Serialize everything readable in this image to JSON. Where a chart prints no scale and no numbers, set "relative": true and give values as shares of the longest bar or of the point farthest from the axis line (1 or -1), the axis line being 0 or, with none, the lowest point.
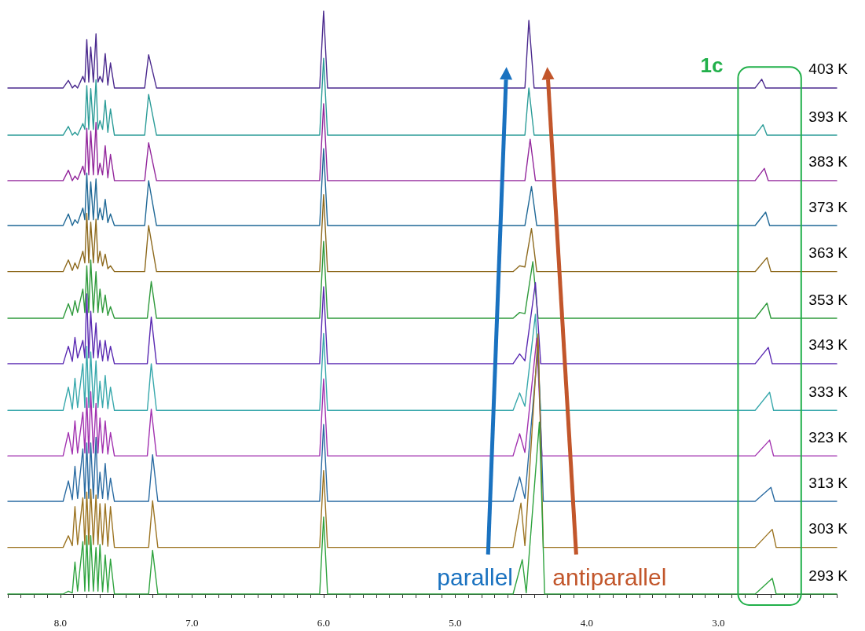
{
  "chart_data": {
    "type": "line",
    "relative": true,
    "xlim": [
      8.4,
      2.1
    ],
    "xticks": [
      {
        "value": 8.4,
        "label": null
      },
      {
        "value": 8.3,
        "label": null
      },
      {
        "value": 8.2,
        "label": null
      },
      {
        "value": 8.1,
        "label": null
      },
      {
        "value": 8,
        "label": "8.0"
      },
      {
        "value": 7.9,
        "label": null
      },
      {
        "value": 7.8,
        "label": null
      },
      {
        "value": 7.7,
        "label": null
      },
      {
        "value": 7.6,
        "label": null
      },
      {
        "value": 7.5,
        "label": null
      },
      {
        "value": 7.4,
        "label": null
      },
      {
        "value": 7.3,
        "label": null
      },
      {
        "value": 7.2,
        "label": null
      },
      {
        "value": 7.1,
        "label": null
      },
      {
        "value": 7,
        "label": "7.0"
      },
      {
        "value": 6.9,
        "label": null
      },
      {
        "value": 6.8,
        "label": null
      },
      {
        "value": 6.7,
        "label": null
      },
      {
        "value": 6.6,
        "label": null
      },
      {
        "value": 6.5,
        "label": null
      },
      {
        "value": 6.4,
        "label": null
      },
      {
        "value": 6.3,
        "label": null
      },
      {
        "value": 6.2,
        "label": null
      },
      {
        "value": 6.1,
        "label": null
      },
      {
        "value": 6,
        "label": "6.0"
      },
      {
        "value": 5.9,
        "label": null
      },
      {
        "value": 5.8,
        "label": null
      },
      {
        "value": 5.7,
        "label": null
      },
      {
        "value": 5.6,
        "label": null
      },
      {
        "value": 5.5,
        "label": null
      },
      {
        "value": 5.4,
        "label": null
      },
      {
        "value": 5.3,
        "label": null
      },
      {
        "value": 5.2,
        "label": null
      },
      {
        "value": 5.1,
        "label": null
      },
      {
        "value": 5,
        "label": "5.0"
      },
      {
        "value": 4.9,
        "label": null
      },
      {
        "value": 4.8,
        "label": null
      },
      {
        "value": 4.7,
        "label": null
      },
      {
        "value": 4.6,
        "label": null
      },
      {
        "value": 4.5,
        "label": null
      },
      {
        "value": 4.4,
        "label": null
      },
      {
        "value": 4.3,
        "label": null
      },
      {
        "value": 4.2,
        "label": null
      },
      {
        "value": 4.1,
        "label": null
      },
      {
        "value": 4,
        "label": "4.0"
      },
      {
        "value": 3.9,
        "label": null
      },
      {
        "value": 3.8,
        "label": null
      },
      {
        "value": 3.7,
        "label": null
      },
      {
        "value": 3.6,
        "label": null
      },
      {
        "value": 3.5,
        "label": null
      },
      {
        "value": 3.4,
        "label": null
      },
      {
        "value": 3.3,
        "label": null
      },
      {
        "value": 3.2,
        "label": null
      },
      {
        "value": 3.1,
        "label": null
      },
      {
        "value": 3,
        "label": "3.0"
      },
      {
        "value": 2.9,
        "label": null
      },
      {
        "value": 2.8,
        "label": null
      },
      {
        "value": 2.7,
        "label": null
      },
      {
        "value": 2.6,
        "label": null
      },
      {
        "value": 2.5,
        "label": null
      },
      {
        "value": 2.4,
        "label": null
      },
      {
        "value": 2.3,
        "label": null
      },
      {
        "value": 2.2,
        "label": null
      },
      {
        "value": 2.1,
        "label": null
      }
    ],
    "annotations": [
      "1c",
      "parallel",
      "antiparallel"
    ],
    "series": [
      {
        "name": "403 K",
        "color": "#4b2a8e",
        "x": [
          8.4,
          7.98,
          7.94,
          7.91,
          7.89,
          7.87,
          7.83,
          7.815,
          7.8,
          7.785,
          7.77,
          7.75,
          7.73,
          7.715,
          7.7,
          7.68,
          7.66,
          7.64,
          7.62,
          7.59,
          7.36,
          7.33,
          7.27,
          6.03,
          6.0,
          5.97,
          4.56,
          4.51,
          4.47,
          4.44,
          4.4,
          2.72,
          2.67,
          2.64,
          2.1
        ],
        "values": [
          0.868,
          0.868,
          0.881,
          0.868,
          0.873,
          0.868,
          0.888,
          0.878,
          0.951,
          0.878,
          0.938,
          0.878,
          0.961,
          0.878,
          0.888,
          0.878,
          0.927,
          0.873,
          0.911,
          0.868,
          0.868,
          0.925,
          0.868,
          0.868,
          1.0,
          0.868,
          0.868,
          0.868,
          0.868,
          0.984,
          0.868,
          0.868,
          0.883,
          0.868,
          0.868
        ]
      },
      {
        "name": "393 K",
        "color": "#2b9c98",
        "x": [
          8.4,
          7.98,
          7.94,
          7.91,
          7.89,
          7.87,
          7.83,
          7.815,
          7.8,
          7.785,
          7.77,
          7.75,
          7.73,
          7.715,
          7.7,
          7.68,
          7.66,
          7.64,
          7.62,
          7.59,
          7.36,
          7.33,
          7.27,
          6.03,
          6.0,
          5.97,
          4.56,
          4.51,
          4.47,
          4.44,
          4.4,
          2.72,
          2.66,
          2.63,
          2.1
        ],
        "values": [
          0.787,
          0.787,
          0.802,
          0.787,
          0.792,
          0.787,
          0.807,
          0.797,
          0.872,
          0.797,
          0.867,
          0.797,
          0.882,
          0.797,
          0.812,
          0.797,
          0.847,
          0.792,
          0.832,
          0.787,
          0.787,
          0.857,
          0.787,
          0.787,
          0.919,
          0.787,
          0.787,
          0.787,
          0.787,
          0.868,
          0.787,
          0.787,
          0.805,
          0.787,
          0.787
        ]
      },
      {
        "name": "383 K",
        "color": "#93279c",
        "x": [
          8.4,
          7.98,
          7.94,
          7.91,
          7.89,
          7.87,
          7.83,
          7.815,
          7.8,
          7.785,
          7.77,
          7.75,
          7.73,
          7.715,
          7.7,
          7.68,
          7.66,
          7.64,
          7.62,
          7.59,
          7.36,
          7.33,
          7.27,
          6.03,
          6.0,
          5.97,
          4.56,
          4.51,
          4.47,
          4.43,
          4.39,
          2.72,
          2.65,
          2.62,
          2.1
        ],
        "values": [
          0.709,
          0.709,
          0.727,
          0.709,
          0.717,
          0.711,
          0.734,
          0.719,
          0.799,
          0.719,
          0.794,
          0.719,
          0.809,
          0.719,
          0.739,
          0.719,
          0.769,
          0.714,
          0.754,
          0.709,
          0.709,
          0.774,
          0.709,
          0.709,
          0.841,
          0.709,
          0.709,
          0.709,
          0.709,
          0.78,
          0.709,
          0.709,
          0.73,
          0.709,
          0.709
        ]
      },
      {
        "name": "373 K",
        "color": "#1f6896",
        "x": [
          8.4,
          7.98,
          7.94,
          7.91,
          7.89,
          7.87,
          7.83,
          7.815,
          7.8,
          7.785,
          7.77,
          7.75,
          7.73,
          7.715,
          7.7,
          7.68,
          7.66,
          7.64,
          7.62,
          7.59,
          7.36,
          7.33,
          7.27,
          6.03,
          6.0,
          5.97,
          4.56,
          4.51,
          4.47,
          4.42,
          4.38,
          2.72,
          2.64,
          2.61,
          2.1
        ],
        "values": [
          0.632,
          0.632,
          0.652,
          0.632,
          0.642,
          0.636,
          0.662,
          0.642,
          0.722,
          0.642,
          0.707,
          0.642,
          0.712,
          0.642,
          0.662,
          0.642,
          0.677,
          0.637,
          0.652,
          0.632,
          0.632,
          0.709,
          0.632,
          0.632,
          0.764,
          0.632,
          0.632,
          0.632,
          0.632,
          0.699,
          0.632,
          0.632,
          0.655,
          0.632,
          0.632
        ]
      },
      {
        "name": "363 K",
        "color": "#8e6a1e",
        "x": [
          8.4,
          7.98,
          7.94,
          7.91,
          7.89,
          7.87,
          7.83,
          7.815,
          7.8,
          7.785,
          7.77,
          7.75,
          7.73,
          7.715,
          7.7,
          7.68,
          7.66,
          7.64,
          7.62,
          7.59,
          7.36,
          7.33,
          7.27,
          6.03,
          6.0,
          5.97,
          4.56,
          4.51,
          4.47,
          4.42,
          4.38,
          2.72,
          2.63,
          2.6,
          2.1
        ],
        "values": [
          0.553,
          0.553,
          0.573,
          0.555,
          0.568,
          0.558,
          0.588,
          0.568,
          0.653,
          0.568,
          0.638,
          0.568,
          0.643,
          0.568,
          0.588,
          0.563,
          0.583,
          0.558,
          0.563,
          0.553,
          0.553,
          0.632,
          0.553,
          0.553,
          0.685,
          0.553,
          0.553,
          0.563,
          0.561,
          0.627,
          0.553,
          0.553,
          0.577,
          0.553,
          0.553
        ]
      },
      {
        "name": "353 K",
        "color": "#2f9a3c",
        "x": [
          8.4,
          7.98,
          7.94,
          7.91,
          7.89,
          7.87,
          7.83,
          7.815,
          7.8,
          7.785,
          7.77,
          7.75,
          7.73,
          7.715,
          7.7,
          7.68,
          7.66,
          7.64,
          7.62,
          7.59,
          7.34,
          7.31,
          7.27,
          6.03,
          6.0,
          5.97,
          4.56,
          4.51,
          4.47,
          4.41,
          4.37,
          2.72,
          2.63,
          2.6,
          2.1
        ],
        "values": [
          0.473,
          0.473,
          0.498,
          0.478,
          0.503,
          0.483,
          0.523,
          0.483,
          0.563,
          0.483,
          0.573,
          0.483,
          0.553,
          0.483,
          0.523,
          0.483,
          0.513,
          0.478,
          0.493,
          0.473,
          0.473,
          0.536,
          0.473,
          0.473,
          0.605,
          0.473,
          0.473,
          0.483,
          0.481,
          0.57,
          0.473,
          0.473,
          0.499,
          0.473,
          0.473
        ]
      },
      {
        "name": "343 K",
        "color": "#5a2ab2",
        "x": [
          8.4,
          7.98,
          7.94,
          7.91,
          7.89,
          7.87,
          7.83,
          7.815,
          7.8,
          7.785,
          7.77,
          7.75,
          7.73,
          7.715,
          7.7,
          7.68,
          7.66,
          7.64,
          7.62,
          7.59,
          7.34,
          7.31,
          7.27,
          6.03,
          6.0,
          5.97,
          4.56,
          4.51,
          4.47,
          4.39,
          4.35,
          2.72,
          2.62,
          2.59,
          2.1
        ],
        "values": [
          0.395,
          0.395,
          0.425,
          0.399,
          0.44,
          0.405,
          0.435,
          0.405,
          0.515,
          0.405,
          0.485,
          0.405,
          0.465,
          0.405,
          0.435,
          0.4,
          0.435,
          0.4,
          0.425,
          0.395,
          0.395,
          0.475,
          0.395,
          0.395,
          0.527,
          0.395,
          0.395,
          0.412,
          0.4,
          0.534,
          0.395,
          0.395,
          0.423,
          0.395,
          0.395
        ]
      },
      {
        "name": "333 K",
        "color": "#38a8ac",
        "x": [
          8.4,
          7.98,
          7.94,
          7.91,
          7.89,
          7.87,
          7.83,
          7.815,
          7.8,
          7.785,
          7.77,
          7.75,
          7.73,
          7.715,
          7.7,
          7.68,
          7.66,
          7.64,
          7.62,
          7.59,
          7.34,
          7.31,
          7.27,
          6.03,
          6.0,
          5.97,
          4.56,
          4.51,
          4.47,
          4.39,
          4.35,
          2.72,
          2.61,
          2.58,
          2.1
        ],
        "values": [
          0.315,
          0.315,
          0.355,
          0.317,
          0.37,
          0.32,
          0.395,
          0.32,
          0.425,
          0.32,
          0.415,
          0.32,
          0.4,
          0.32,
          0.365,
          0.32,
          0.375,
          0.318,
          0.355,
          0.315,
          0.315,
          0.395,
          0.315,
          0.315,
          0.447,
          0.315,
          0.315,
          0.345,
          0.322,
          0.48,
          0.315,
          0.315,
          0.346,
          0.315,
          0.315
        ]
      },
      {
        "name": "323 K",
        "color": "#a232b0",
        "x": [
          8.4,
          7.98,
          7.94,
          7.91,
          7.89,
          7.87,
          7.83,
          7.815,
          7.8,
          7.785,
          7.77,
          7.75,
          7.73,
          7.715,
          7.7,
          7.68,
          7.66,
          7.64,
          7.62,
          7.59,
          7.34,
          7.31,
          7.27,
          6.03,
          6.0,
          5.97,
          4.56,
          4.51,
          4.47,
          4.38,
          4.34,
          2.72,
          2.61,
          2.58,
          2.1
        ],
        "values": [
          0.237,
          0.237,
          0.277,
          0.24,
          0.297,
          0.242,
          0.312,
          0.242,
          0.337,
          0.242,
          0.347,
          0.242,
          0.327,
          0.242,
          0.302,
          0.242,
          0.297,
          0.24,
          0.277,
          0.237,
          0.237,
          0.317,
          0.237,
          0.237,
          0.369,
          0.237,
          0.237,
          0.275,
          0.243,
          0.439,
          0.237,
          0.237,
          0.264,
          0.237,
          0.237
        ]
      },
      {
        "name": "313 K",
        "color": "#2a6ba2",
        "x": [
          8.4,
          7.98,
          7.94,
          7.91,
          7.89,
          7.87,
          7.83,
          7.815,
          7.8,
          7.785,
          7.77,
          7.75,
          7.73,
          7.715,
          7.7,
          7.68,
          7.66,
          7.64,
          7.62,
          7.59,
          7.33,
          7.3,
          7.26,
          6.03,
          6.0,
          5.97,
          4.56,
          4.51,
          4.47,
          4.37,
          4.33,
          2.72,
          2.6,
          2.57,
          2.1
        ],
        "values": [
          0.159,
          0.159,
          0.194,
          0.162,
          0.219,
          0.164,
          0.249,
          0.164,
          0.259,
          0.164,
          0.259,
          0.164,
          0.269,
          0.164,
          0.209,
          0.164,
          0.224,
          0.162,
          0.199,
          0.159,
          0.159,
          0.239,
          0.159,
          0.159,
          0.291,
          0.159,
          0.159,
          0.201,
          0.164,
          0.426,
          0.159,
          0.159,
          0.183,
          0.159,
          0.159
        ]
      },
      {
        "name": "303 K",
        "color": "#9c7422",
        "x": [
          8.4,
          7.98,
          7.94,
          7.91,
          7.89,
          7.87,
          7.83,
          7.815,
          7.8,
          7.785,
          7.77,
          7.75,
          7.73,
          7.715,
          7.7,
          7.68,
          7.66,
          7.64,
          7.62,
          7.59,
          7.33,
          7.3,
          7.26,
          6.03,
          6.0,
          5.97,
          4.56,
          4.5,
          4.47,
          4.37,
          4.33,
          2.72,
          2.59,
          2.56,
          2.1
        ],
        "values": [
          0.08,
          0.08,
          0.1,
          0.083,
          0.15,
          0.085,
          0.165,
          0.085,
          0.175,
          0.085,
          0.18,
          0.085,
          0.17,
          0.085,
          0.155,
          0.085,
          0.155,
          0.082,
          0.15,
          0.08,
          0.08,
          0.16,
          0.08,
          0.08,
          0.212,
          0.08,
          0.08,
          0.156,
          0.083,
          0.446,
          0.08,
          0.08,
          0.111,
          0.08,
          0.08
        ]
      },
      {
        "name": "293 K",
        "color": "#2ea33e",
        "x": [
          8.4,
          7.98,
          7.94,
          7.91,
          7.89,
          7.87,
          7.83,
          7.815,
          7.8,
          7.785,
          7.77,
          7.75,
          7.73,
          7.715,
          7.7,
          7.68,
          7.66,
          7.64,
          7.62,
          7.59,
          7.33,
          7.3,
          7.26,
          6.03,
          6.0,
          5.97,
          4.56,
          4.49,
          4.46,
          4.36,
          4.32,
          2.72,
          2.59,
          2.56,
          2.1
        ],
        "values": [
          0,
          0,
          0.005,
          0.002,
          0.055,
          0.005,
          0.09,
          0.005,
          0.1,
          0.005,
          0.1,
          0.005,
          0.08,
          0.005,
          0.085,
          0.004,
          0.067,
          0.003,
          0.06,
          0,
          0,
          0.075,
          0,
          0,
          0.132,
          0,
          0,
          0.059,
          0.002,
          0.295,
          0,
          0,
          0.027,
          0,
          0
        ]
      }
    ]
  }
}
